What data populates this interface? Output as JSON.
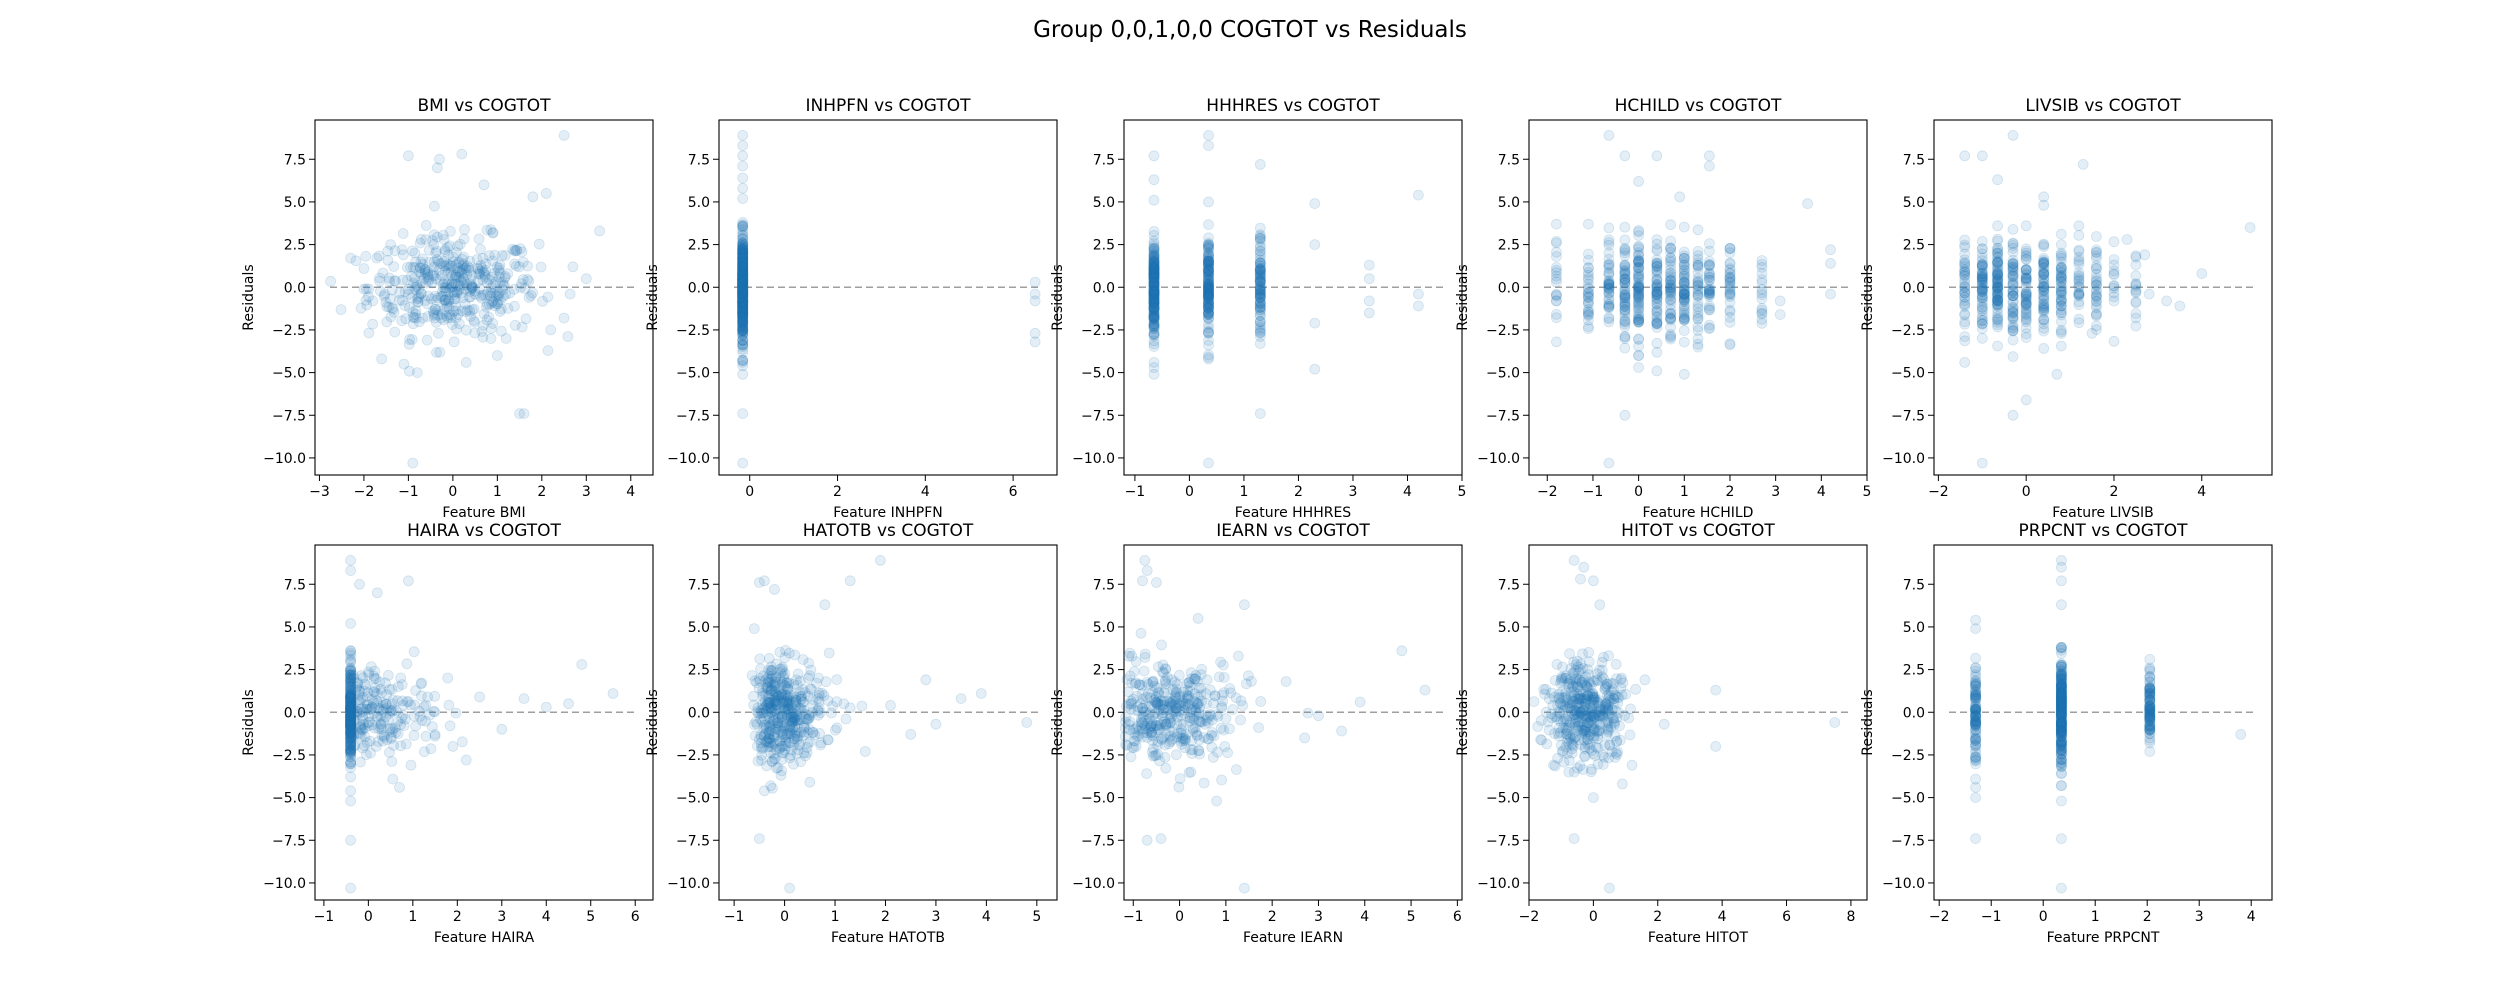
{
  "figure": {
    "suptitle": "Group 0,0,1,0,0 COGTOT vs Residuals",
    "point_color": "#1f77b4",
    "point_alpha": 0.12,
    "zero_line_color": "#808080",
    "zero_line_style": "dashed"
  },
  "chart_data": [
    {
      "type": "scatter",
      "title": "BMI vs COGTOT",
      "xlabel": "Feature BMI",
      "ylabel": "Residuals",
      "xlim": [
        -3.1,
        4.5
      ],
      "ylim": [
        -11.0,
        9.8
      ],
      "xticks": [
        -3,
        -2,
        -1,
        0,
        1,
        2,
        3,
        4
      ],
      "yticks": [
        -10.0,
        -7.5,
        -5.0,
        -2.5,
        0.0,
        2.5,
        5.0,
        7.5
      ],
      "ytick_labels": [
        "−10.0",
        "−7.5",
        "−5.0",
        "−2.5",
        "0.0",
        "2.5",
        "5.0",
        "7.5"
      ],
      "zero_line": 0,
      "points": [
        [
          -1.0,
          7.7
        ],
        [
          -0.3,
          7.5
        ],
        [
          0.2,
          7.8
        ],
        [
          -0.35,
          7.0
        ],
        [
          2.5,
          8.9
        ],
        [
          1.8,
          5.3
        ],
        [
          2.1,
          5.5
        ],
        [
          0.7,
          6.0
        ],
        [
          3.3,
          3.3
        ],
        [
          -2.3,
          1.7
        ],
        [
          -2.0,
          1.1
        ],
        [
          -1.4,
          2.5
        ],
        [
          1.2,
          -3.0
        ],
        [
          1.5,
          -7.4
        ],
        [
          1.6,
          -7.4
        ],
        [
          -1.1,
          -4.5
        ],
        [
          -0.8,
          -5.0
        ],
        [
          -0.9,
          -10.3
        ],
        [
          2.5,
          -1.8
        ],
        [
          2.2,
          -2.5
        ],
        [
          -1.6,
          -4.2
        ],
        [
          0.3,
          -4.4
        ],
        [
          1.0,
          -4.0
        ],
        [
          -0.2,
          2.8
        ],
        [
          0.9,
          3.2
        ],
        [
          3.0,
          0.5
        ],
        [
          -1.8,
          -0.8
        ],
        [
          2.7,
          1.2
        ]
      ]
    },
    {
      "type": "scatter",
      "title": "INHPFN vs COGTOT",
      "xlabel": "Feature INHPFN",
      "ylabel": "Residuals",
      "xlim": [
        -0.7,
        7.0
      ],
      "ylim": [
        -11.0,
        9.8
      ],
      "xticks": [
        0,
        2,
        4,
        6
      ],
      "yticks": [
        -10.0,
        -7.5,
        -5.0,
        -2.5,
        0.0,
        2.5,
        5.0,
        7.5
      ],
      "ytick_labels": [
        "−10.0",
        "−7.5",
        "−5.0",
        "−2.5",
        "0.0",
        "2.5",
        "5.0",
        "7.5"
      ],
      "zero_line": 0,
      "points": [
        [
          -0.16,
          8.9
        ],
        [
          -0.16,
          8.3
        ],
        [
          -0.16,
          7.7
        ],
        [
          -0.16,
          7.1
        ],
        [
          -0.16,
          6.4
        ],
        [
          -0.16,
          5.8
        ],
        [
          -0.16,
          5.2
        ],
        [
          -0.16,
          -4.4
        ],
        [
          -0.16,
          -4.6
        ],
        [
          -0.16,
          -5.1
        ],
        [
          -0.16,
          -7.4
        ],
        [
          -0.16,
          -10.3
        ],
        [
          6.5,
          0.3
        ],
        [
          6.5,
          -0.4
        ],
        [
          6.5,
          -0.8
        ],
        [
          6.5,
          -2.7
        ],
        [
          6.5,
          -3.2
        ]
      ]
    },
    {
      "type": "scatter",
      "title": "HHHRES vs COGTOT",
      "xlabel": "Feature HHHRES",
      "ylabel": "Residuals",
      "xlim": [
        -1.2,
        5.0
      ],
      "ylim": [
        -11.0,
        9.8
      ],
      "xticks": [
        -1,
        0,
        1,
        2,
        3,
        4,
        5
      ],
      "yticks": [
        -10.0,
        -7.5,
        -5.0,
        -2.5,
        0.0,
        2.5,
        5.0,
        7.5
      ],
      "ytick_labels": [
        "−10.0",
        "−7.5",
        "−5.0",
        "−2.5",
        "0.0",
        "2.5",
        "5.0",
        "7.5"
      ],
      "zero_line": 0,
      "points": [
        [
          -0.65,
          7.7
        ],
        [
          -0.65,
          6.3
        ],
        [
          -0.65,
          5.1
        ],
        [
          -0.65,
          -4.4
        ],
        [
          -0.65,
          -4.7
        ],
        [
          -0.65,
          -5.1
        ],
        [
          0.35,
          8.9
        ],
        [
          0.35,
          8.3
        ],
        [
          0.35,
          5.0
        ],
        [
          0.35,
          -4.1
        ],
        [
          0.35,
          -10.3
        ],
        [
          1.3,
          7.2
        ],
        [
          1.3,
          -7.4
        ],
        [
          1.3,
          -3.3
        ],
        [
          2.3,
          4.9
        ],
        [
          2.3,
          2.5
        ],
        [
          2.3,
          -2.1
        ],
        [
          2.3,
          -4.8
        ],
        [
          3.3,
          1.3
        ],
        [
          3.3,
          0.5
        ],
        [
          3.3,
          -0.8
        ],
        [
          3.3,
          -1.5
        ],
        [
          4.2,
          5.4
        ],
        [
          4.2,
          -0.4
        ],
        [
          4.2,
          -1.1
        ]
      ]
    },
    {
      "type": "scatter",
      "title": "HCHILD vs COGTOT",
      "xlabel": "Feature HCHILD",
      "ylabel": "Residuals",
      "xlim": [
        -2.4,
        5.0
      ],
      "ylim": [
        -11.0,
        9.8
      ],
      "xticks": [
        -2,
        -1,
        0,
        1,
        2,
        3,
        4,
        5
      ],
      "yticks": [
        -10.0,
        -7.5,
        -5.0,
        -2.5,
        0.0,
        2.5,
        5.0,
        7.5
      ],
      "ytick_labels": [
        "−10.0",
        "−7.5",
        "−5.0",
        "−2.5",
        "0.0",
        "2.5",
        "5.0",
        "7.5"
      ],
      "zero_line": 0,
      "points": [
        [
          -0.65,
          8.9
        ],
        [
          -0.3,
          7.7
        ],
        [
          0.4,
          7.7
        ],
        [
          0.9,
          5.3
        ],
        [
          1.55,
          7.7
        ],
        [
          1.55,
          7.1
        ],
        [
          0.0,
          6.2
        ],
        [
          -1.8,
          2.6
        ],
        [
          -1.8,
          -3.2
        ],
        [
          -0.65,
          -10.3
        ],
        [
          -0.3,
          -7.5
        ],
        [
          0.0,
          -4.7
        ],
        [
          0.4,
          -4.9
        ],
        [
          1.0,
          -5.1
        ],
        [
          2.0,
          -3.3
        ],
        [
          3.1,
          -0.8
        ],
        [
          3.1,
          -1.6
        ],
        [
          3.7,
          4.9
        ],
        [
          4.2,
          2.2
        ],
        [
          4.2,
          -0.4
        ],
        [
          4.2,
          1.4
        ]
      ]
    },
    {
      "type": "scatter",
      "title": "LIVSIB vs COGTOT",
      "xlabel": "Feature LIVSIB",
      "ylabel": "Residuals",
      "xlim": [
        -2.1,
        5.6
      ],
      "ylim": [
        -11.0,
        9.8
      ],
      "xticks": [
        -2,
        0,
        2,
        4
      ],
      "yticks": [
        -10.0,
        -7.5,
        -5.0,
        -2.5,
        0.0,
        2.5,
        5.0,
        7.5
      ],
      "ytick_labels": [
        "−10.0",
        "−7.5",
        "−5.0",
        "−2.5",
        "0.0",
        "2.5",
        "5.0",
        "7.5"
      ],
      "zero_line": 0,
      "points": [
        [
          -1.4,
          7.7
        ],
        [
          -1.0,
          7.7
        ],
        [
          -0.65,
          6.3
        ],
        [
          -0.3,
          8.9
        ],
        [
          0.4,
          5.3
        ],
        [
          1.3,
          7.2
        ],
        [
          0.4,
          4.8
        ],
        [
          -1.4,
          -4.4
        ],
        [
          -1.0,
          -10.3
        ],
        [
          -0.3,
          -7.5
        ],
        [
          0.0,
          -6.6
        ],
        [
          0.7,
          -5.1
        ],
        [
          1.5,
          -2.7
        ],
        [
          2.3,
          2.8
        ],
        [
          2.7,
          1.9
        ],
        [
          3.2,
          -0.8
        ],
        [
          3.5,
          -1.1
        ],
        [
          4.0,
          0.8
        ],
        [
          5.1,
          3.5
        ],
        [
          2.8,
          -0.4
        ]
      ]
    },
    {
      "type": "scatter",
      "title": "HAIRA vs COGTOT",
      "xlabel": "Feature HAIRA",
      "ylabel": "Residuals",
      "xlim": [
        -1.2,
        6.4
      ],
      "ylim": [
        -11.0,
        9.8
      ],
      "xticks": [
        -1,
        0,
        1,
        2,
        3,
        4,
        5,
        6
      ],
      "yticks": [
        -10.0,
        -7.5,
        -5.0,
        -2.5,
        0.0,
        2.5,
        5.0,
        7.5
      ],
      "ytick_labels": [
        "−10.0",
        "−7.5",
        "−5.0",
        "−2.5",
        "0.0",
        "2.5",
        "5.0",
        "7.5"
      ],
      "zero_line": 0,
      "points": [
        [
          -0.4,
          8.9
        ],
        [
          -0.4,
          8.3
        ],
        [
          -0.4,
          5.2
        ],
        [
          -0.2,
          7.5
        ],
        [
          0.9,
          7.7
        ],
        [
          0.2,
          7.0
        ],
        [
          -0.4,
          -7.5
        ],
        [
          -0.4,
          -10.3
        ],
        [
          -0.4,
          -5.2
        ],
        [
          0.7,
          -4.4
        ],
        [
          2.2,
          -2.8
        ],
        [
          3.0,
          -1.0
        ],
        [
          3.5,
          0.8
        ],
        [
          4.0,
          0.3
        ],
        [
          4.5,
          0.5
        ],
        [
          4.8,
          2.8
        ],
        [
          5.5,
          1.1
        ],
        [
          2.5,
          0.9
        ],
        [
          1.5,
          -1.3
        ],
        [
          1.9,
          -2.0
        ]
      ]
    },
    {
      "type": "scatter",
      "title": "HATOTB vs COGTOT",
      "xlabel": "Feature HATOTB",
      "ylabel": "Residuals",
      "xlim": [
        -1.3,
        5.4
      ],
      "ylim": [
        -11.0,
        9.8
      ],
      "xticks": [
        -1,
        0,
        1,
        2,
        3,
        4,
        5
      ],
      "yticks": [
        -10.0,
        -7.5,
        -5.0,
        -2.5,
        0.0,
        2.5,
        5.0,
        7.5
      ],
      "ytick_labels": [
        "−10.0",
        "−7.5",
        "−5.0",
        "−2.5",
        "0.0",
        "2.5",
        "5.0",
        "7.5"
      ],
      "zero_line": 0,
      "points": [
        [
          -0.4,
          7.7
        ],
        [
          -0.5,
          7.6
        ],
        [
          -0.2,
          7.2
        ],
        [
          1.9,
          8.9
        ],
        [
          1.3,
          7.7
        ],
        [
          0.8,
          6.3
        ],
        [
          -0.6,
          4.9
        ],
        [
          -0.5,
          -7.4
        ],
        [
          0.1,
          -10.3
        ],
        [
          -0.4,
          -4.6
        ],
        [
          0.5,
          -4.1
        ],
        [
          2.5,
          -1.3
        ],
        [
          3.0,
          -0.7
        ],
        [
          3.5,
          0.8
        ],
        [
          3.9,
          1.1
        ],
        [
          4.8,
          -0.6
        ],
        [
          2.1,
          0.4
        ],
        [
          2.8,
          1.9
        ],
        [
          1.6,
          -2.3
        ]
      ]
    },
    {
      "type": "scatter",
      "title": "IEARN vs COGTOT",
      "xlabel": "Feature IEARN",
      "ylabel": "Residuals",
      "xlim": [
        -1.2,
        6.1
      ],
      "ylim": [
        -11.0,
        9.8
      ],
      "xticks": [
        -1,
        0,
        1,
        2,
        3,
        4,
        5,
        6
      ],
      "yticks": [
        -10.0,
        -7.5,
        -5.0,
        -2.5,
        0.0,
        2.5,
        5.0,
        7.5
      ],
      "ytick_labels": [
        "−10.0",
        "−7.5",
        "−5.0",
        "−2.5",
        "0.0",
        "2.5",
        "5.0",
        "7.5"
      ],
      "zero_line": 0,
      "points": [
        [
          -0.75,
          8.9
        ],
        [
          -0.7,
          8.3
        ],
        [
          -0.8,
          7.7
        ],
        [
          -0.5,
          7.6
        ],
        [
          0.4,
          5.5
        ],
        [
          1.4,
          6.3
        ],
        [
          -0.7,
          -7.5
        ],
        [
          -0.4,
          -7.4
        ],
        [
          1.4,
          -10.3
        ],
        [
          0.8,
          -5.2
        ],
        [
          3.0,
          -0.2
        ],
        [
          3.5,
          -1.1
        ],
        [
          4.8,
          3.6
        ],
        [
          5.3,
          1.3
        ],
        [
          3.9,
          0.6
        ],
        [
          2.3,
          1.8
        ],
        [
          2.7,
          -1.5
        ]
      ]
    },
    {
      "type": "scatter",
      "title": "HITOT vs COGTOT",
      "xlabel": "Feature HITOT",
      "ylabel": "Residuals",
      "xlim": [
        -2.0,
        8.5
      ],
      "ylim": [
        -11.0,
        9.8
      ],
      "xticks": [
        -2,
        0,
        2,
        4,
        6,
        8
      ],
      "yticks": [
        -10.0,
        -7.5,
        -5.0,
        -2.5,
        0.0,
        2.5,
        5.0,
        7.5
      ],
      "ytick_labels": [
        "−10.0",
        "−7.5",
        "−5.0",
        "−2.5",
        "0.0",
        "2.5",
        "5.0",
        "7.5"
      ],
      "zero_line": 0,
      "points": [
        [
          -0.6,
          8.9
        ],
        [
          -0.3,
          8.5
        ],
        [
          0.0,
          7.7
        ],
        [
          0.2,
          6.3
        ],
        [
          -0.4,
          7.8
        ],
        [
          -0.6,
          -7.4
        ],
        [
          0.5,
          -10.3
        ],
        [
          0.0,
          -5.0
        ],
        [
          1.2,
          -3.1
        ],
        [
          2.2,
          -0.7
        ],
        [
          3.8,
          -2.0
        ],
        [
          3.8,
          1.3
        ],
        [
          7.5,
          -0.6
        ],
        [
          1.6,
          1.9
        ],
        [
          0.9,
          -4.2
        ]
      ]
    },
    {
      "type": "scatter",
      "title": "PRPCNT vs COGTOT",
      "xlabel": "Feature PRPCNT",
      "ylabel": "Residuals",
      "xlim": [
        -2.1,
        4.4
      ],
      "ylim": [
        -11.0,
        9.8
      ],
      "xticks": [
        -2,
        -1,
        0,
        1,
        2,
        3,
        4
      ],
      "yticks": [
        -10.0,
        -7.5,
        -5.0,
        -2.5,
        0.0,
        2.5,
        5.0,
        7.5
      ],
      "ytick_labels": [
        "−10.0",
        "−7.5",
        "−5.0",
        "−2.5",
        "0.0",
        "2.5",
        "5.0",
        "7.5"
      ],
      "zero_line": 0,
      "points": [
        [
          -1.3,
          5.4
        ],
        [
          -1.3,
          4.9
        ],
        [
          -1.3,
          -4.4
        ],
        [
          -1.3,
          -5.0
        ],
        [
          -1.3,
          -7.4
        ],
        [
          0.35,
          8.9
        ],
        [
          0.35,
          8.5
        ],
        [
          0.35,
          7.7
        ],
        [
          0.35,
          6.3
        ],
        [
          0.35,
          -10.3
        ],
        [
          0.35,
          -7.4
        ],
        [
          0.35,
          -5.2
        ],
        [
          2.05,
          3.1
        ],
        [
          2.05,
          2.6
        ],
        [
          2.05,
          -1.5
        ],
        [
          2.05,
          -2.3
        ],
        [
          3.8,
          -1.3
        ]
      ]
    }
  ]
}
